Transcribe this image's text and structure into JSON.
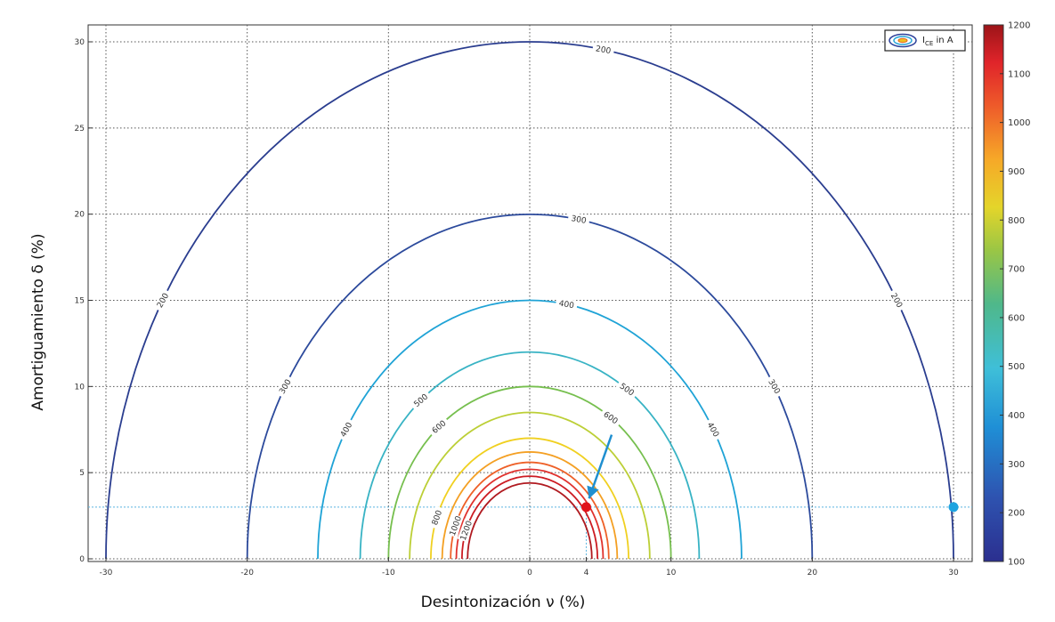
{
  "chart_data": {
    "type": "contour",
    "xlabel": "Desintonización ν (%)",
    "ylabel": "Amortiguamiento  δ (%)",
    "xlim": [
      -30,
      30
    ],
    "ylim": [
      0,
      30
    ],
    "xticks": [
      -30,
      -20,
      -10,
      0,
      4,
      10,
      20,
      30
    ],
    "xtick_labels": [
      "-30",
      "-20",
      "-10",
      "0",
      "4",
      "10",
      "20",
      "30"
    ],
    "yticks": [
      0,
      5,
      10,
      15,
      20,
      25,
      30
    ],
    "grid": true,
    "legend": {
      "label": "I_CE in A",
      "position": "top-right"
    },
    "colorbar": {
      "min": 100,
      "max": 1200,
      "ticks": [
        100,
        200,
        300,
        400,
        500,
        600,
        700,
        800,
        900,
        1000,
        1100,
        1200
      ]
    },
    "contours": [
      {
        "level": 200,
        "radius": 30,
        "label": "200",
        "color": "#2a3d8f"
      },
      {
        "level": 300,
        "radius": 20,
        "label": "300",
        "color": "#2c4a9c"
      },
      {
        "level": 400,
        "radius": 15,
        "label": "400",
        "color": "#1fa3d6"
      },
      {
        "level": 500,
        "radius": 12,
        "label": "500",
        "color": "#38b3c4"
      },
      {
        "level": 600,
        "radius": 10,
        "label": "600",
        "color": "#76bf4e"
      },
      {
        "level": 700,
        "radius": 8.5,
        "label": "",
        "color": "#bccf36"
      },
      {
        "level": 800,
        "radius": 7,
        "label": "800",
        "color": "#f0d020"
      },
      {
        "level": 900,
        "radius": 6.2,
        "label": "",
        "color": "#f4a024"
      },
      {
        "level": 1000,
        "radius": 5.6,
        "label": "1000",
        "color": "#ee6028"
      },
      {
        "level": 1100,
        "radius": 5.2,
        "label": "",
        "color": "#e0322e"
      },
      {
        "level": 1200,
        "radius": 4.8,
        "label": "1200",
        "color": "#cc1b22"
      },
      {
        "level": 1200,
        "radius": 4.4,
        "label": "",
        "color": "#b01a20"
      }
    ],
    "reference_line_y": 3,
    "points": [
      {
        "name": "operating-point",
        "x": 4,
        "y": 3,
        "color": "#e0141c"
      },
      {
        "name": "initial-point",
        "x": 30,
        "y": 3,
        "color": "#1fa3e0"
      }
    ],
    "arrow": {
      "from": [
        5.8,
        7.2
      ],
      "to": [
        4.2,
        3.5
      ],
      "color": "#1f8fd0"
    }
  }
}
